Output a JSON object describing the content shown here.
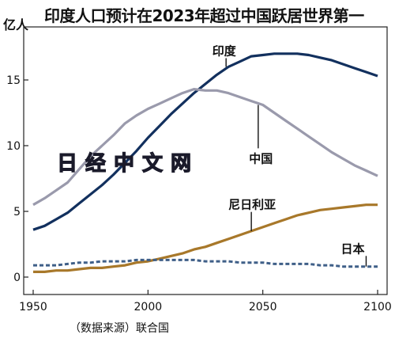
{
  "title": "印度人口预计在2023年超过中国跃居世界第一",
  "source": "（数据来源）联合国",
  "watermark": "日经中文网",
  "chart_data": {
    "type": "line",
    "title": "印度人口预计在2023年超过中国跃居世界第一",
    "ylabel": "亿人",
    "xlabel": "",
    "xlim": [
      1950,
      2100
    ],
    "ylim": [
      0,
      18
    ],
    "xticks": [
      1950,
      2000,
      2050,
      2100
    ],
    "yticks": [
      0,
      5,
      10,
      15
    ],
    "grid": false,
    "series": [
      {
        "name": "印度",
        "color": "#12305e",
        "dash": "solid",
        "label_at": {
          "x": 2034,
          "y": 16.4
        },
        "x": [
          1950,
          1955,
          1960,
          1965,
          1970,
          1975,
          1980,
          1985,
          1990,
          1995,
          2000,
          2005,
          2010,
          2015,
          2020,
          2025,
          2030,
          2035,
          2040,
          2045,
          2050,
          2055,
          2060,
          2065,
          2070,
          2075,
          2080,
          2085,
          2090,
          2095,
          2100
        ],
        "values": [
          3.6,
          3.9,
          4.4,
          4.9,
          5.6,
          6.3,
          7.0,
          7.8,
          8.7,
          9.6,
          10.6,
          11.5,
          12.4,
          13.2,
          14.0,
          14.7,
          15.4,
          16.0,
          16.4,
          16.8,
          16.9,
          17.0,
          17.0,
          17.0,
          16.9,
          16.7,
          16.5,
          16.2,
          15.9,
          15.6,
          15.3
        ]
      },
      {
        "name": "中国",
        "color": "#9a9aac",
        "dash": "solid",
        "label_at": {
          "x": 2048,
          "y": 11.2
        },
        "x": [
          1950,
          1955,
          1960,
          1965,
          1970,
          1975,
          1980,
          1985,
          1990,
          1995,
          2000,
          2005,
          2010,
          2015,
          2020,
          2025,
          2030,
          2035,
          2040,
          2045,
          2050,
          2055,
          2060,
          2065,
          2070,
          2075,
          2080,
          2085,
          2090,
          2095,
          2100
        ],
        "values": [
          5.5,
          6.0,
          6.6,
          7.2,
          8.2,
          9.2,
          10.0,
          10.8,
          11.7,
          12.3,
          12.8,
          13.2,
          13.6,
          14.0,
          14.3,
          14.2,
          14.2,
          14.0,
          13.7,
          13.4,
          13.1,
          12.5,
          11.9,
          11.3,
          10.7,
          10.1,
          9.5,
          9.0,
          8.5,
          8.1,
          7.7
        ]
      },
      {
        "name": "尼日利亚",
        "color": "#a8782a",
        "dash": "solid",
        "label_at": {
          "x": 2043,
          "y": 5.6
        },
        "x": [
          1950,
          1955,
          1960,
          1965,
          1970,
          1975,
          1980,
          1985,
          1990,
          1995,
          2000,
          2005,
          2010,
          2015,
          2020,
          2025,
          2030,
          2035,
          2040,
          2045,
          2050,
          2055,
          2060,
          2065,
          2070,
          2075,
          2080,
          2085,
          2090,
          2095,
          2100
        ],
        "values": [
          0.4,
          0.4,
          0.5,
          0.5,
          0.6,
          0.7,
          0.7,
          0.8,
          0.9,
          1.1,
          1.2,
          1.4,
          1.6,
          1.8,
          2.1,
          2.3,
          2.6,
          2.9,
          3.2,
          3.5,
          3.8,
          4.1,
          4.4,
          4.7,
          4.9,
          5.1,
          5.2,
          5.3,
          5.4,
          5.5,
          5.5
        ]
      },
      {
        "name": "日本",
        "color": "#3f5f88",
        "dash": "dashed",
        "label_at": {
          "x": 2086,
          "y": 1.7
        },
        "x": [
          1950,
          1955,
          1960,
          1965,
          1970,
          1975,
          1980,
          1985,
          1990,
          1995,
          2000,
          2005,
          2010,
          2015,
          2020,
          2025,
          2030,
          2035,
          2040,
          2045,
          2050,
          2055,
          2060,
          2065,
          2070,
          2075,
          2080,
          2085,
          2090,
          2095,
          2100
        ],
        "values": [
          0.9,
          0.9,
          0.9,
          1.0,
          1.1,
          1.1,
          1.2,
          1.2,
          1.2,
          1.3,
          1.3,
          1.3,
          1.3,
          1.3,
          1.3,
          1.2,
          1.2,
          1.2,
          1.1,
          1.1,
          1.1,
          1.0,
          1.0,
          1.0,
          1.0,
          0.9,
          0.9,
          0.8,
          0.8,
          0.8,
          0.8
        ]
      }
    ]
  }
}
